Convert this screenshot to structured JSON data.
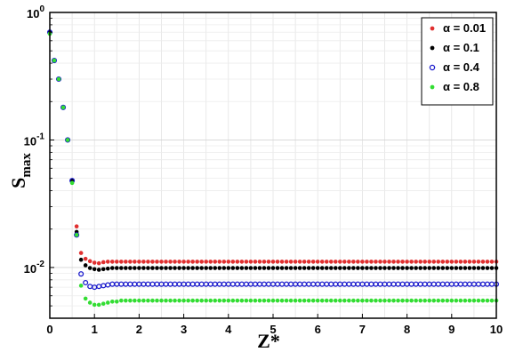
{
  "chart_data": {
    "type": "scatter",
    "xlabel": "Z*",
    "ylabel": "S",
    "ylabel_sub": "max",
    "xlim": [
      0,
      10
    ],
    "ylim": [
      0.004,
      1
    ],
    "yscale": "log",
    "grid": true,
    "legend_position": "top-right",
    "x_ticks": [
      "0",
      "1",
      "2",
      "3",
      "4",
      "5",
      "6",
      "7",
      "8",
      "9",
      "10"
    ],
    "y_ticks": [
      {
        "base": "10",
        "exp": "0",
        "value": 1
      },
      {
        "base": "10",
        "exp": "-1",
        "value": 0.1
      },
      {
        "base": "10",
        "exp": "-2",
        "value": 0.01
      }
    ],
    "x": [
      0.0,
      0.1,
      0.2,
      0.3,
      0.4,
      0.5,
      0.6,
      0.7,
      0.8,
      0.9,
      1.0,
      1.1,
      1.2,
      1.3,
      1.4,
      1.5,
      1.6,
      1.7,
      1.8,
      1.9,
      2.0,
      2.1,
      2.2,
      2.3,
      2.4,
      2.5,
      2.6,
      2.7,
      2.8,
      2.9,
      3.0,
      3.1,
      3.2,
      3.3,
      3.4,
      3.5,
      3.6,
      3.7,
      3.8,
      3.9,
      4.0,
      4.1,
      4.2,
      4.3,
      4.4,
      4.5,
      4.6,
      4.7,
      4.8,
      4.9,
      5.0,
      5.1,
      5.2,
      5.3,
      5.4,
      5.5,
      5.6,
      5.7,
      5.8,
      5.9,
      6.0,
      6.1,
      6.2,
      6.3,
      6.4,
      6.5,
      6.6,
      6.7,
      6.8,
      6.9,
      7.0,
      7.1,
      7.2,
      7.3,
      7.4,
      7.5,
      7.6,
      7.7,
      7.8,
      7.9,
      8.0,
      8.1,
      8.2,
      8.3,
      8.4,
      8.5,
      8.6,
      8.7,
      8.8,
      8.9,
      9.0,
      9.1,
      9.2,
      9.3,
      9.4,
      9.5,
      9.6,
      9.7,
      9.8,
      9.9,
      10.0
    ],
    "series": [
      {
        "name": "α = 0.01",
        "color": "#e03030",
        "marker": "dot",
        "values": [
          0.7,
          0.42,
          0.3,
          0.18,
          0.1,
          0.048,
          0.021,
          0.013,
          0.0117,
          0.0112,
          0.0109,
          0.0108,
          0.011,
          0.0111,
          0.0111,
          0.0111,
          0.0111,
          0.0111,
          0.0111,
          0.0111,
          0.0111,
          0.0111,
          0.0111,
          0.0111,
          0.0111,
          0.0111,
          0.0111,
          0.0111,
          0.0111,
          0.0111,
          0.0111,
          0.0111,
          0.0111,
          0.0111,
          0.0111,
          0.0111,
          0.0111,
          0.0111,
          0.0111,
          0.0111,
          0.0111,
          0.0111,
          0.0111,
          0.0111,
          0.0111,
          0.0111,
          0.0111,
          0.0111,
          0.0111,
          0.0111,
          0.0111,
          0.0111,
          0.0111,
          0.0111,
          0.0111,
          0.0111,
          0.0111,
          0.0111,
          0.0111,
          0.0111,
          0.0111,
          0.0111,
          0.0111,
          0.0111,
          0.0111,
          0.0111,
          0.0111,
          0.0111,
          0.0111,
          0.0111,
          0.0111,
          0.0111,
          0.0111,
          0.0111,
          0.0111,
          0.0111,
          0.0111,
          0.0111,
          0.0111,
          0.0111,
          0.0111,
          0.0111,
          0.0111,
          0.0111,
          0.0111,
          0.0111,
          0.0111,
          0.0111,
          0.0111,
          0.0111,
          0.0111,
          0.0111,
          0.0111,
          0.0111,
          0.0111,
          0.0111,
          0.0111,
          0.0111,
          0.0111,
          0.0111,
          0.0111
        ]
      },
      {
        "name": "α = 0.1",
        "color": "#000000",
        "marker": "dot",
        "values": [
          0.7,
          0.42,
          0.3,
          0.18,
          0.1,
          0.048,
          0.019,
          0.0115,
          0.0104,
          0.0099,
          0.0097,
          0.0096,
          0.0097,
          0.0098,
          0.0099,
          0.0099,
          0.0099,
          0.0099,
          0.0099,
          0.0099,
          0.0099,
          0.0099,
          0.0099,
          0.0099,
          0.0099,
          0.0099,
          0.0099,
          0.0099,
          0.0099,
          0.0099,
          0.0099,
          0.0099,
          0.0099,
          0.0099,
          0.0099,
          0.0099,
          0.0099,
          0.0099,
          0.0099,
          0.0099,
          0.0099,
          0.0099,
          0.0099,
          0.0099,
          0.0099,
          0.0099,
          0.0099,
          0.0099,
          0.0099,
          0.0099,
          0.0099,
          0.0099,
          0.0099,
          0.0099,
          0.0099,
          0.0099,
          0.0099,
          0.0099,
          0.0099,
          0.0099,
          0.0099,
          0.0099,
          0.0099,
          0.0099,
          0.0099,
          0.0099,
          0.0099,
          0.0099,
          0.0099,
          0.0099,
          0.0099,
          0.0099,
          0.0099,
          0.0099,
          0.0099,
          0.0099,
          0.0099,
          0.0099,
          0.0099,
          0.0099,
          0.0099,
          0.0099,
          0.0099,
          0.0099,
          0.0099,
          0.0099,
          0.0099,
          0.0099,
          0.0099,
          0.0099,
          0.0099,
          0.0099,
          0.0099,
          0.0099,
          0.0099,
          0.0099,
          0.0099,
          0.0099,
          0.0099,
          0.0099,
          0.0099
        ]
      },
      {
        "name": "α = 0.4",
        "color": "#1a1acc",
        "marker": "ring",
        "values": [
          0.7,
          0.42,
          0.3,
          0.18,
          0.1,
          0.048,
          0.018,
          0.0089,
          0.0076,
          0.0071,
          0.007,
          0.0071,
          0.0072,
          0.0073,
          0.0074,
          0.0074,
          0.0074,
          0.0074,
          0.0074,
          0.0074,
          0.0074,
          0.0074,
          0.0074,
          0.0074,
          0.0074,
          0.0074,
          0.0074,
          0.0074,
          0.0074,
          0.0074,
          0.0074,
          0.0074,
          0.0074,
          0.0074,
          0.0074,
          0.0074,
          0.0074,
          0.0074,
          0.0074,
          0.0074,
          0.0074,
          0.0074,
          0.0074,
          0.0074,
          0.0074,
          0.0074,
          0.0074,
          0.0074,
          0.0074,
          0.0074,
          0.0074,
          0.0074,
          0.0074,
          0.0074,
          0.0074,
          0.0074,
          0.0074,
          0.0074,
          0.0074,
          0.0074,
          0.0074,
          0.0074,
          0.0074,
          0.0074,
          0.0074,
          0.0074,
          0.0074,
          0.0074,
          0.0074,
          0.0074,
          0.0074,
          0.0074,
          0.0074,
          0.0074,
          0.0074,
          0.0074,
          0.0074,
          0.0074,
          0.0074,
          0.0074,
          0.0074,
          0.0074,
          0.0074,
          0.0074,
          0.0074,
          0.0074,
          0.0074,
          0.0074,
          0.0074,
          0.0074,
          0.0074,
          0.0074,
          0.0074,
          0.0074,
          0.0074,
          0.0074,
          0.0074,
          0.0074,
          0.0074,
          0.0074,
          0.0074
        ]
      },
      {
        "name": "α = 0.8",
        "color": "#33dd33",
        "marker": "dot",
        "values": [
          0.68,
          0.42,
          0.3,
          0.18,
          0.1,
          0.046,
          0.018,
          0.0072,
          0.0057,
          0.0053,
          0.0051,
          0.0051,
          0.0052,
          0.0053,
          0.0054,
          0.0054,
          0.0055,
          0.0055,
          0.0055,
          0.0055,
          0.0055,
          0.0055,
          0.0055,
          0.0055,
          0.0055,
          0.0055,
          0.0055,
          0.0055,
          0.0055,
          0.0055,
          0.0055,
          0.0055,
          0.0055,
          0.0055,
          0.0055,
          0.0055,
          0.0055,
          0.0055,
          0.0055,
          0.0055,
          0.0055,
          0.0055,
          0.0055,
          0.0055,
          0.0055,
          0.0055,
          0.0055,
          0.0055,
          0.0055,
          0.0055,
          0.0055,
          0.0055,
          0.0055,
          0.0055,
          0.0055,
          0.0055,
          0.0055,
          0.0055,
          0.0055,
          0.0055,
          0.0055,
          0.0055,
          0.0055,
          0.0055,
          0.0055,
          0.0055,
          0.0055,
          0.0055,
          0.0055,
          0.0055,
          0.0055,
          0.0055,
          0.0055,
          0.0055,
          0.0055,
          0.0055,
          0.0055,
          0.0055,
          0.0055,
          0.0055,
          0.0055,
          0.0055,
          0.0055,
          0.0055,
          0.0055,
          0.0055,
          0.0055,
          0.0055,
          0.0055,
          0.0055,
          0.0055,
          0.0055,
          0.0055,
          0.0055,
          0.0055,
          0.0055,
          0.0055,
          0.0055,
          0.0055,
          0.0055,
          0.0055
        ]
      }
    ]
  }
}
